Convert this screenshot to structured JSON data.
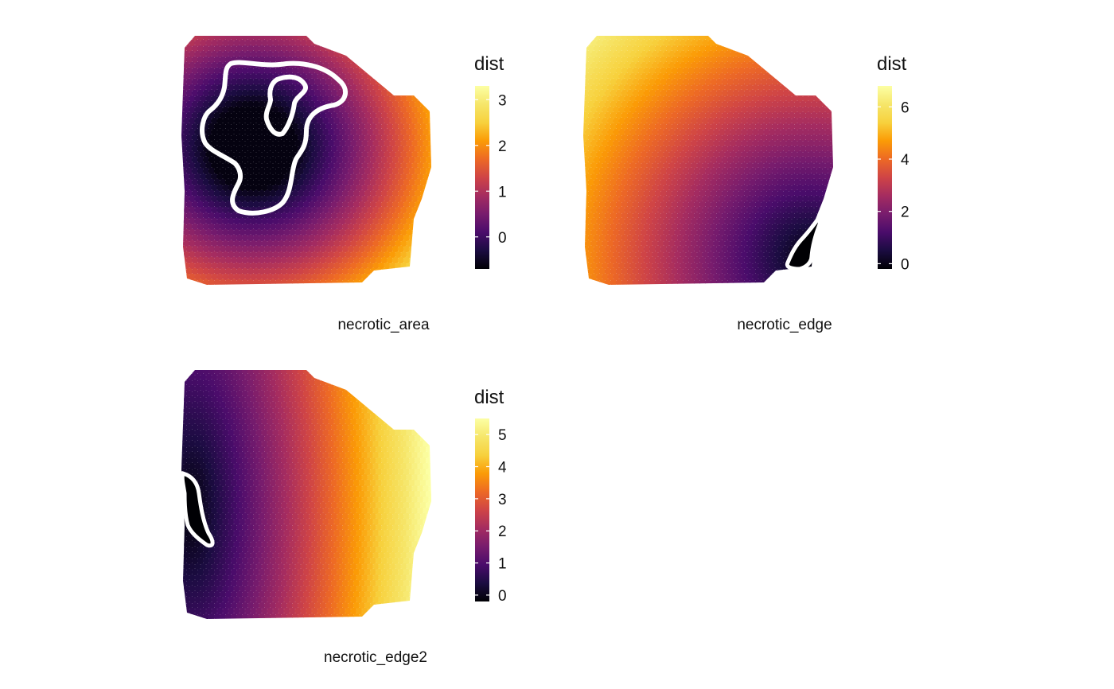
{
  "chart_data": [
    {
      "type": "heatmap",
      "panel_label": "necrotic_area",
      "legend_title": "dist",
      "legend_ticks": [
        0,
        1,
        2,
        3
      ],
      "value_range": [
        -0.7,
        3.3
      ],
      "colormap": "inferno",
      "outline_color": "#ffffff",
      "grid": false
    },
    {
      "type": "heatmap",
      "panel_label": "necrotic_edge",
      "legend_title": "dist",
      "legend_ticks": [
        0,
        2,
        4,
        6
      ],
      "value_range": [
        -0.2,
        6.8
      ],
      "colormap": "inferno",
      "outline_color": "#ffffff",
      "grid": false
    },
    {
      "type": "heatmap",
      "panel_label": "necrotic_edge2",
      "legend_title": "dist",
      "legend_ticks": [
        0,
        1,
        2,
        3,
        4,
        5
      ],
      "value_range": [
        -0.2,
        5.5
      ],
      "colormap": "inferno",
      "outline_color": "#ffffff",
      "grid": false
    }
  ]
}
